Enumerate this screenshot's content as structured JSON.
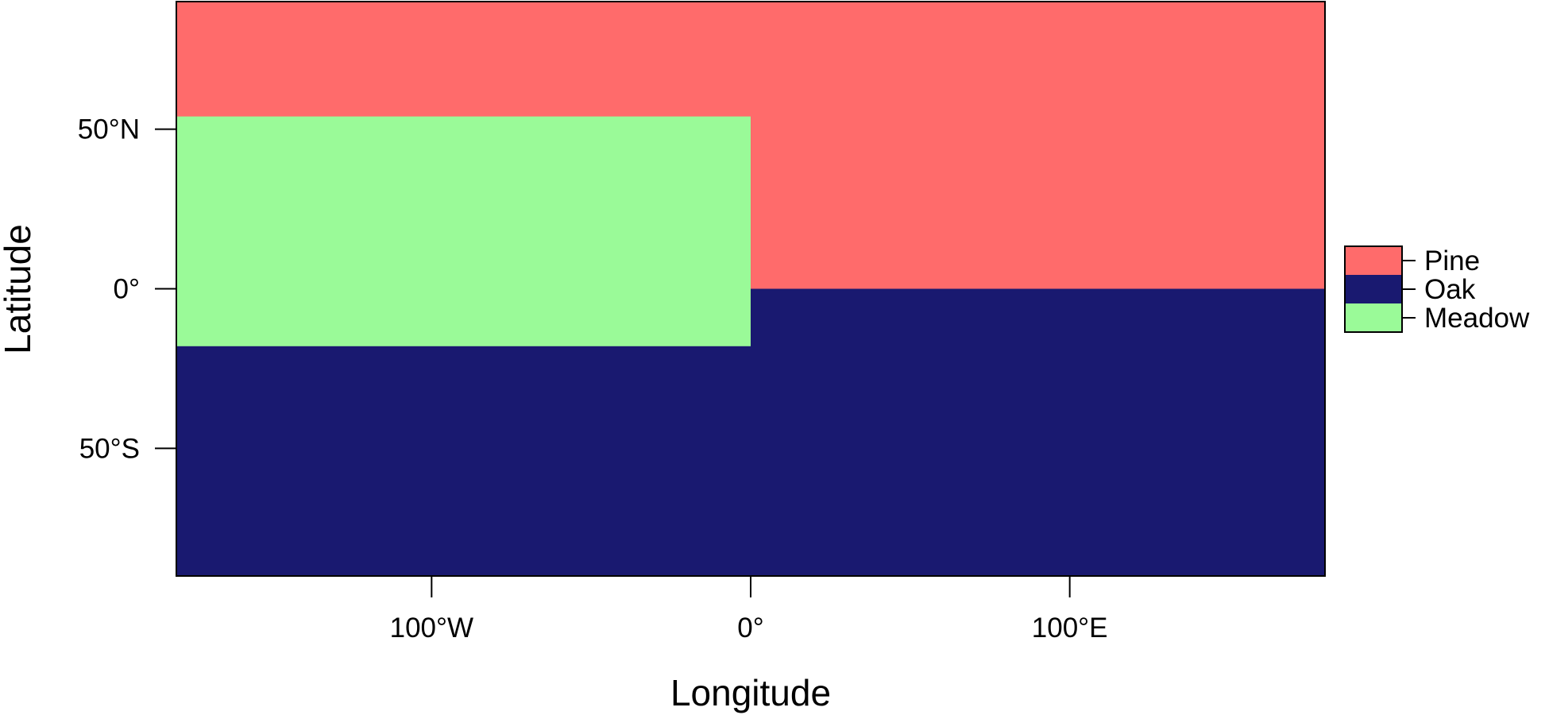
{
  "chart_data": {
    "type": "heatmap",
    "title": "",
    "xlabel": "Longitude",
    "ylabel": "Latitude",
    "xlim": [
      -180,
      180
    ],
    "ylim": [
      -90,
      90
    ],
    "x_ticks": [
      {
        "value": -100,
        "label": "100°W"
      },
      {
        "value": 0,
        "label": "0°"
      },
      {
        "value": 100,
        "label": "100°E"
      }
    ],
    "y_ticks": [
      {
        "value": 50,
        "label": "50°N"
      },
      {
        "value": 0,
        "label": "0°"
      },
      {
        "value": -50,
        "label": "50°S"
      }
    ],
    "regions": [
      {
        "category": "Pine",
        "lon": [
          -180,
          180
        ],
        "lat": [
          0,
          90
        ]
      },
      {
        "category": "Oak",
        "lon": [
          -180,
          180
        ],
        "lat": [
          -90,
          0
        ]
      },
      {
        "category": "Meadow",
        "lon": [
          -180,
          0
        ],
        "lat": [
          -18,
          54
        ]
      }
    ],
    "legend": {
      "placement": "right",
      "entries": [
        {
          "label": "Pine",
          "color": "#FF6B6B"
        },
        {
          "label": "Oak",
          "color": "#191970"
        },
        {
          "label": "Meadow",
          "color": "#9AFA98"
        }
      ]
    },
    "grid": false
  }
}
